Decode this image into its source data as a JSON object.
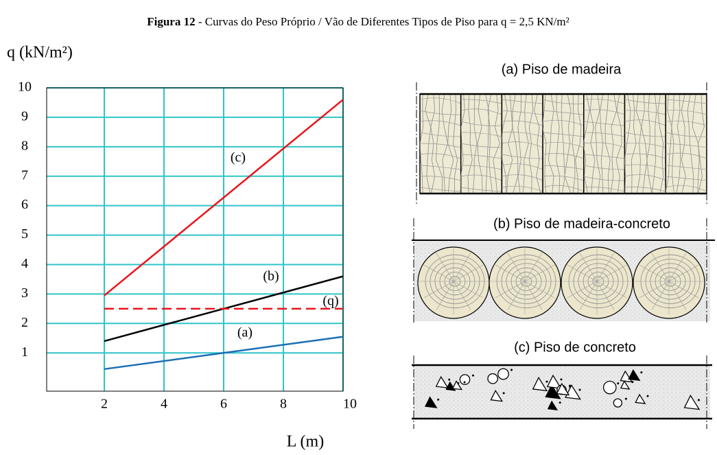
{
  "chart_data": {
    "type": "line",
    "title_bold": "Figura 12",
    "title": " - Curvas do Peso Próprio / Vão de Diferentes Tipos de Piso para q = 2,5 KN/m²",
    "y_label": "q (kN/m²)",
    "x_label": "L (m)",
    "xlim": [
      0,
      10
    ],
    "ylim": [
      -0.3,
      10
    ],
    "xticks": [
      2,
      4,
      6,
      8,
      10
    ],
    "yticks": [
      1,
      2,
      3,
      4,
      5,
      6,
      7,
      8,
      9,
      10
    ],
    "grid": true,
    "grid_color": "#2ec4c9",
    "series": [
      {
        "name": "(c)",
        "color": "#e8141a",
        "dash": false,
        "x": [
          2,
          10
        ],
        "values": [
          2.95,
          9.6
        ]
      },
      {
        "name": "(b)",
        "color": "#000000",
        "dash": false,
        "x": [
          2,
          10
        ],
        "values": [
          1.4,
          3.6
        ]
      },
      {
        "name": "(q)",
        "color": "#e8141a",
        "dash": true,
        "x": [
          2,
          10
        ],
        "values": [
          2.5,
          2.5
        ]
      },
      {
        "name": "(a)",
        "color": "#1a6fb5",
        "dash": false,
        "x": [
          2,
          10
        ],
        "values": [
          0.45,
          1.55
        ]
      }
    ]
  },
  "panels": [
    {
      "label": "(a) Piso de madeira"
    },
    {
      "label": "(b) Piso de madeira-concreto"
    },
    {
      "label": "(c) Piso de concreto"
    }
  ]
}
